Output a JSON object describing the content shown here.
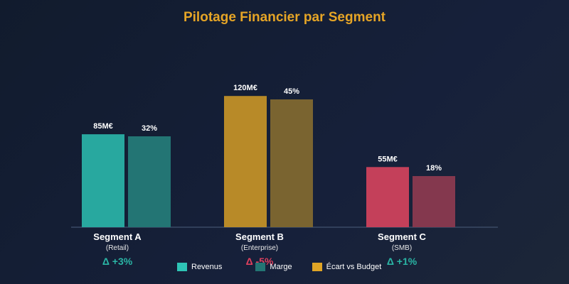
{
  "chart_data": {
    "type": "bar",
    "title": "Pilotage Financier par Segment",
    "categories": [
      {
        "name": "Segment A",
        "sub": "(Retail)",
        "delta": "Δ +3%",
        "delta_color": "#2ab5a5"
      },
      {
        "name": "Segment B",
        "sub": "(Enterprise)",
        "delta": "Δ -5%",
        "delta_color": "#e0405e"
      },
      {
        "name": "Segment C",
        "sub": "(SMB)",
        "delta": "Δ +1%",
        "delta_color": "#2ab5a5"
      }
    ],
    "series": [
      {
        "name": "Revenus",
        "values": [
          85,
          120,
          55
        ],
        "labels": [
          "85M€",
          "120M€",
          "55M€"
        ],
        "colors": [
          "#28a89f",
          "#b88a28",
          "#c4405a"
        ]
      },
      {
        "name": "Marge",
        "values": [
          32,
          45,
          18
        ],
        "labels": [
          "32%",
          "45%",
          "18%"
        ],
        "colors": [
          "#237574",
          "#7a6430",
          "#84384e"
        ]
      }
    ],
    "legend": [
      {
        "label": "Revenus",
        "color": "#2ec4b6"
      },
      {
        "label": "Marge",
        "color": "#237574"
      },
      {
        "label": "Écart vs Budget",
        "color": "#e0a526"
      }
    ],
    "legend_position": "bottom",
    "grid": false
  }
}
